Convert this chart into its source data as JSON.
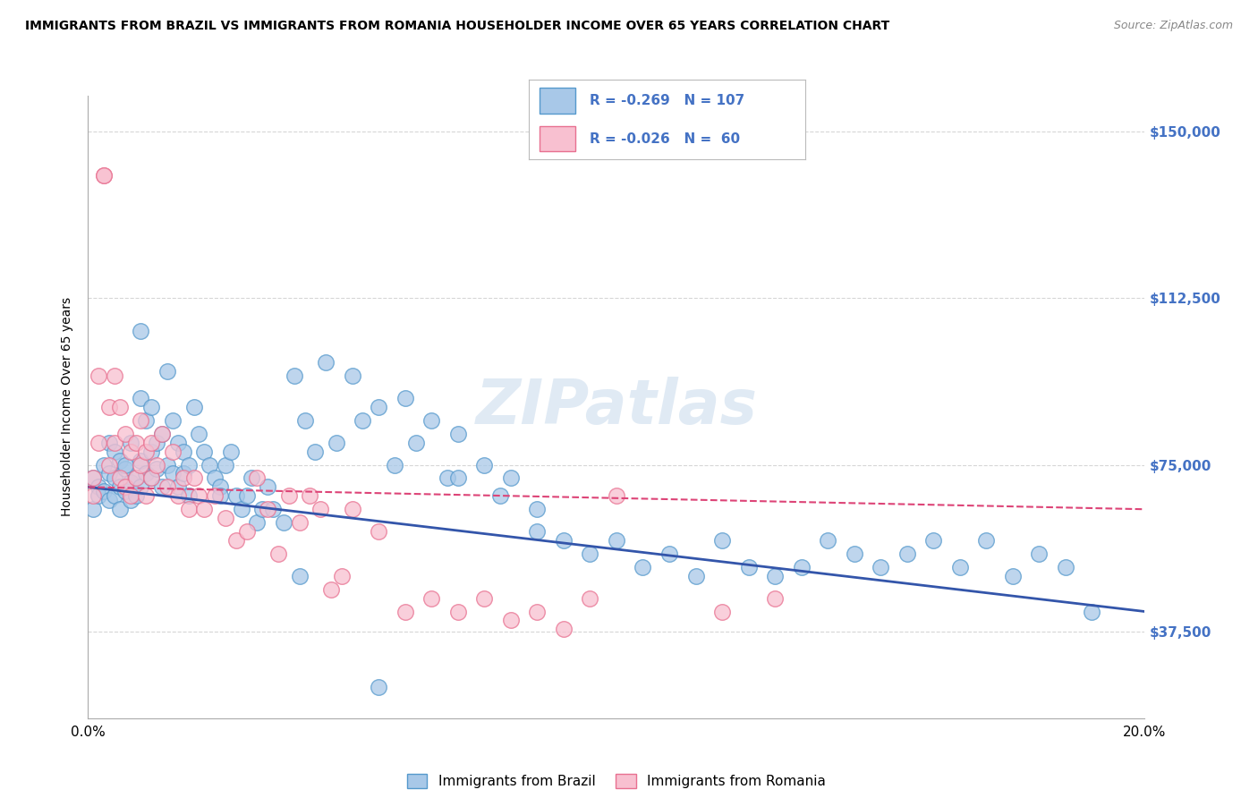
{
  "title": "IMMIGRANTS FROM BRAZIL VS IMMIGRANTS FROM ROMANIA HOUSEHOLDER INCOME OVER 65 YEARS CORRELATION CHART",
  "source": "Source: ZipAtlas.com",
  "ylabel": "Householder Income Over 65 years",
  "xlim": [
    0.0,
    0.2
  ],
  "ylim": [
    18000,
    158000
  ],
  "yticks": [
    37500,
    75000,
    112500,
    150000
  ],
  "ytick_labels": [
    "$37,500",
    "$75,000",
    "$112,500",
    "$150,000"
  ],
  "xticks": [
    0.0,
    0.05,
    0.1,
    0.15,
    0.2
  ],
  "xtick_labels": [
    "0.0%",
    "",
    "",
    "",
    "20.0%"
  ],
  "brazil_color": "#a8c8e8",
  "brazil_edge_color": "#5599cc",
  "romania_color": "#f8c0d0",
  "romania_edge_color": "#e87090",
  "brazil_line_color": "#3355aa",
  "romania_line_color": "#dd4477",
  "brazil_R": -0.269,
  "brazil_N": 107,
  "romania_R": -0.026,
  "romania_N": 60,
  "legend_text_color": "#4472c4",
  "watermark": "ZIPatlas",
  "background_color": "#ffffff",
  "grid_color": "#cccccc",
  "axis_label_color": "#4472c4",
  "brazil_scatter_x": [
    0.001,
    0.001,
    0.002,
    0.002,
    0.003,
    0.003,
    0.004,
    0.004,
    0.004,
    0.005,
    0.005,
    0.005,
    0.006,
    0.006,
    0.006,
    0.007,
    0.007,
    0.007,
    0.008,
    0.008,
    0.008,
    0.009,
    0.009,
    0.01,
    0.01,
    0.01,
    0.011,
    0.011,
    0.012,
    0.012,
    0.012,
    0.013,
    0.013,
    0.014,
    0.014,
    0.015,
    0.015,
    0.016,
    0.016,
    0.017,
    0.017,
    0.018,
    0.018,
    0.019,
    0.019,
    0.02,
    0.021,
    0.022,
    0.023,
    0.024,
    0.025,
    0.026,
    0.027,
    0.028,
    0.029,
    0.03,
    0.031,
    0.032,
    0.033,
    0.034,
    0.035,
    0.037,
    0.039,
    0.041,
    0.043,
    0.045,
    0.047,
    0.05,
    0.052,
    0.055,
    0.058,
    0.06,
    0.062,
    0.065,
    0.068,
    0.07,
    0.075,
    0.078,
    0.08,
    0.085,
    0.09,
    0.095,
    0.1,
    0.105,
    0.11,
    0.115,
    0.12,
    0.125,
    0.13,
    0.135,
    0.14,
    0.145,
    0.15,
    0.155,
    0.16,
    0.165,
    0.17,
    0.175,
    0.18,
    0.185,
    0.19,
    0.01,
    0.025,
    0.04,
    0.055,
    0.07,
    0.085
  ],
  "brazil_scatter_y": [
    72000,
    65000,
    70000,
    68000,
    75000,
    69000,
    80000,
    73000,
    67000,
    78000,
    72000,
    68000,
    76000,
    70000,
    65000,
    74000,
    69000,
    75000,
    71000,
    67000,
    80000,
    72000,
    68000,
    90000,
    76000,
    70000,
    85000,
    73000,
    88000,
    78000,
    72000,
    80000,
    74000,
    82000,
    70000,
    96000,
    75000,
    85000,
    73000,
    80000,
    70000,
    78000,
    73000,
    75000,
    68000,
    88000,
    82000,
    78000,
    75000,
    72000,
    70000,
    75000,
    78000,
    68000,
    65000,
    68000,
    72000,
    62000,
    65000,
    70000,
    65000,
    62000,
    95000,
    85000,
    78000,
    98000,
    80000,
    95000,
    85000,
    88000,
    75000,
    90000,
    80000,
    85000,
    72000,
    82000,
    75000,
    68000,
    72000,
    65000,
    58000,
    55000,
    58000,
    52000,
    55000,
    50000,
    58000,
    52000,
    50000,
    52000,
    58000,
    55000,
    52000,
    55000,
    58000,
    52000,
    58000,
    50000,
    55000,
    52000,
    42000,
    105000,
    68000,
    50000,
    25000,
    72000,
    60000
  ],
  "romania_scatter_x": [
    0.001,
    0.001,
    0.002,
    0.002,
    0.003,
    0.003,
    0.004,
    0.004,
    0.005,
    0.005,
    0.006,
    0.006,
    0.007,
    0.007,
    0.008,
    0.008,
    0.009,
    0.009,
    0.01,
    0.01,
    0.011,
    0.011,
    0.012,
    0.012,
    0.013,
    0.014,
    0.015,
    0.016,
    0.017,
    0.018,
    0.019,
    0.02,
    0.021,
    0.022,
    0.024,
    0.026,
    0.028,
    0.03,
    0.032,
    0.034,
    0.036,
    0.038,
    0.04,
    0.042,
    0.044,
    0.046,
    0.048,
    0.05,
    0.055,
    0.06,
    0.065,
    0.07,
    0.075,
    0.08,
    0.085,
    0.09,
    0.095,
    0.1,
    0.12,
    0.13
  ],
  "romania_scatter_y": [
    72000,
    68000,
    95000,
    80000,
    140000,
    140000,
    88000,
    75000,
    95000,
    80000,
    88000,
    72000,
    82000,
    70000,
    78000,
    68000,
    80000,
    72000,
    85000,
    75000,
    78000,
    68000,
    80000,
    72000,
    75000,
    82000,
    70000,
    78000,
    68000,
    72000,
    65000,
    72000,
    68000,
    65000,
    68000,
    63000,
    58000,
    60000,
    72000,
    65000,
    55000,
    68000,
    62000,
    68000,
    65000,
    47000,
    50000,
    65000,
    60000,
    42000,
    45000,
    42000,
    45000,
    40000,
    42000,
    38000,
    45000,
    68000,
    42000,
    45000
  ]
}
